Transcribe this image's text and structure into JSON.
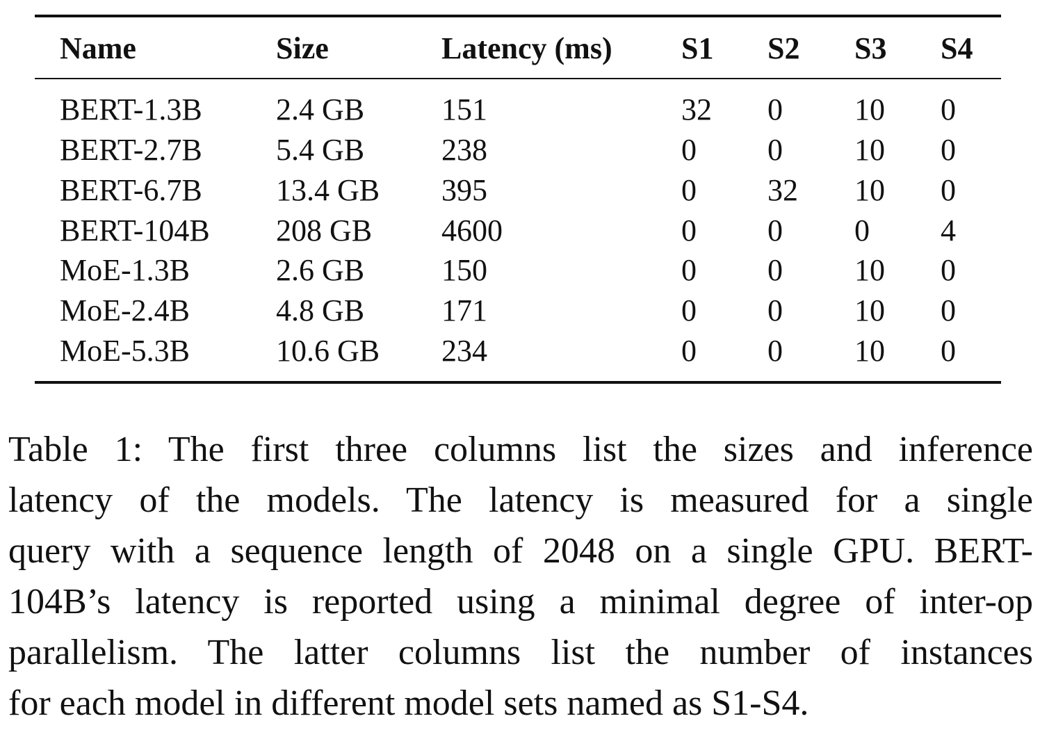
{
  "table": {
    "header": [
      "Name",
      "Size",
      "Latency (ms)",
      "S1",
      "S2",
      "S3",
      "S4"
    ],
    "rows": [
      [
        "BERT-1.3B",
        "2.4 GB",
        151,
        32,
        0,
        10,
        0
      ],
      [
        "BERT-2.7B",
        "5.4 GB",
        238,
        0,
        0,
        10,
        0
      ],
      [
        "BERT-6.7B",
        "13.4 GB",
        395,
        0,
        32,
        10,
        0
      ],
      [
        "BERT-104B",
        "208 GB",
        4600,
        0,
        0,
        0,
        4
      ],
      [
        "MoE-1.3B",
        "2.6 GB",
        150,
        0,
        0,
        10,
        0
      ],
      [
        "MoE-2.4B",
        "4.8 GB",
        171,
        0,
        0,
        10,
        0
      ],
      [
        "MoE-5.3B",
        "10.6 GB",
        234,
        0,
        0,
        10,
        0
      ]
    ]
  },
  "caption": {
    "lines": [
      "Table 1: The first three columns list the sizes and inference",
      "latency of the models. The latency is measured for a single",
      "query with a sequence length of 2048 on a single GPU. BERT-",
      "104B’s latency is reported using a minimal degree of inter-op",
      "parallelism. The latter columns list the number of instances",
      "for each model in different model sets named as S1-S4."
    ]
  }
}
